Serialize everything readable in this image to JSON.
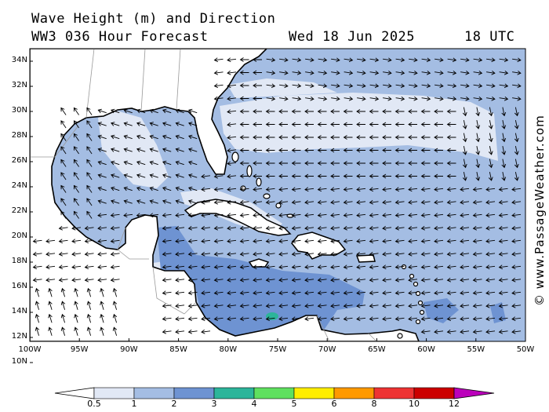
{
  "header": {
    "title_line1": "Wave Height (m) and Direction",
    "title_line2": "WW3 036 Hour Forecast",
    "date": "Wed 18 Jun 2025",
    "time": "18 UTC"
  },
  "credit": "© www.PassageWeather.com",
  "axes": {
    "lat_labels": [
      "34N",
      "32N",
      "30N",
      "28N",
      "26N",
      "24N",
      "22N",
      "20N",
      "18N",
      "16N",
      "14N",
      "12N",
      "10N"
    ],
    "lon_labels": [
      "100W",
      "95W",
      "90W",
      "85W",
      "80W",
      "75W",
      "70W",
      "65W",
      "60W",
      "55W",
      "50W"
    ]
  },
  "legend": {
    "labels": [
      "0.5",
      "1",
      "2",
      "3",
      "4",
      "5",
      "6",
      "8",
      "10",
      "12"
    ],
    "colors": [
      "#ffffff",
      "#e1e8f5",
      "#a4bde3",
      "#6e93d2",
      "#2cb59a",
      "#5fe05f",
      "#ffee00",
      "#ff9900",
      "#ee3333",
      "#cc0000",
      "#bb00bb"
    ]
  },
  "colors": {
    "land": "#ffffff",
    "band_low": "#e1e8f5",
    "band_1_2": "#a4bde3",
    "band_2_3": "#6e93d2",
    "coast": "#000000",
    "border": "#999999"
  }
}
